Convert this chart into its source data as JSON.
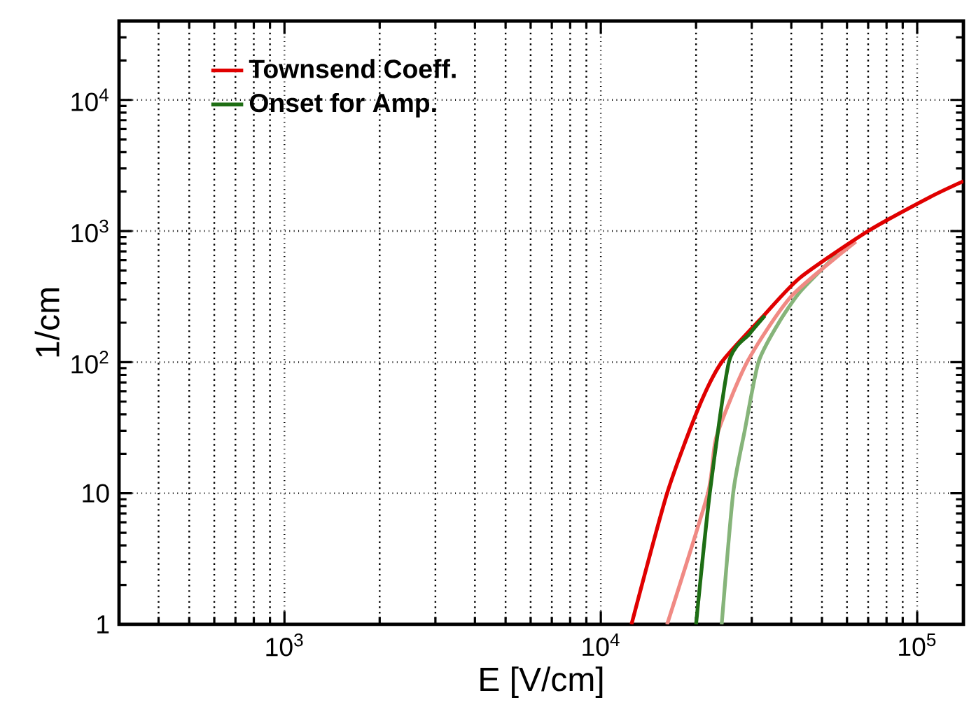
{
  "chart_data": {
    "type": "line",
    "xlabel": "E [V/cm]",
    "ylabel": "1/cm",
    "log": "xy",
    "grid": true,
    "legend": "top left",
    "line_style": "solid",
    "marker": "none",
    "xlim": [
      300,
      140000
    ],
    "ylim": [
      1,
      40000
    ],
    "xticks": [
      {
        "value": 1000,
        "label": "10$^{3}$"
      },
      {
        "value": 10000,
        "label": "10$^{4}$"
      },
      {
        "value": 100000,
        "label": "10$^{5}$"
      }
    ],
    "yticks": [
      1,
      10,
      {
        "value": 100,
        "label": "10$^{2}$"
      },
      {
        "value": 1000,
        "label": "10$^{3}$"
      },
      {
        "value": 10000,
        "label": "10$^{4}$"
      }
    ],
    "series": [
      {
        "name": "Townsend Coeff.",
        "color": "#e00000",
        "x": [
          12500,
          16200,
          20300,
          24100,
          32700,
          42700,
          70000,
          110000,
          140000
        ],
        "values": [
          1,
          10,
          44,
          100,
          226,
          442,
          1000,
          1820,
          2400
        ]
      },
      {
        "name": "Onset for Amp.",
        "color": "#1e6e14",
        "x": [
          20000,
          22100,
          25400,
          29500,
          33000
        ],
        "values": [
          1,
          10,
          100,
          164,
          226
        ]
      },
      {
        "color": "#f08a84",
        "x": [
          16200,
          21800,
          23200,
          29000,
          40000,
          64000
        ],
        "values": [
          1,
          10,
          27,
          100,
          318,
          830
        ]
      },
      {
        "color": "#86b47a",
        "x": [
          24100,
          26200,
          28500,
          31500,
          36300,
          42700,
          56000
        ],
        "values": [
          1,
          10,
          30,
          100,
          195,
          345,
          670
        ]
      }
    ]
  }
}
